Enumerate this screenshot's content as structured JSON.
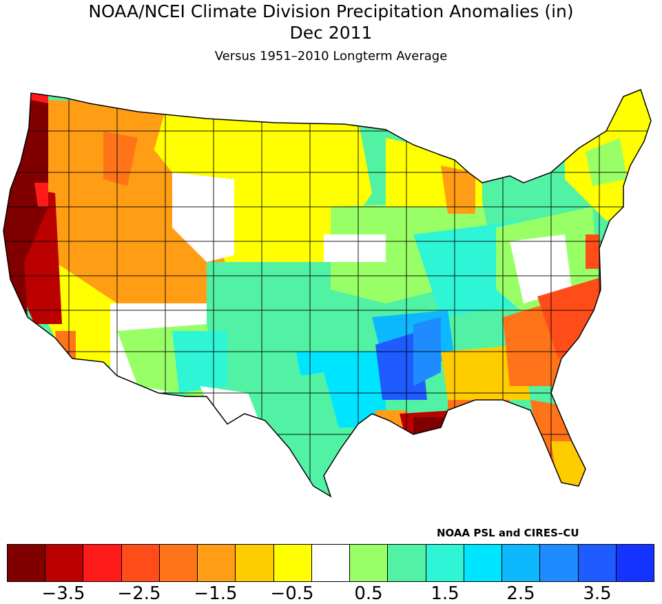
{
  "title": {
    "line1": "NOAA/NCEI Climate Division Precipitation Anomalies (in)",
    "line2": "Dec 2011",
    "line3": "Versus 1951–2010 Longterm Average"
  },
  "credit": "NOAA PSL and CIRES–CU",
  "legend": {
    "unit": "in",
    "colors": [
      "#800000",
      "#bb0000",
      "#ff1a1a",
      "#ff4d1a",
      "#ff7419",
      "#ff9e14",
      "#ffcc00",
      "#ffff00",
      "#ffffff",
      "#99ff66",
      "#52f2a4",
      "#2ef5d6",
      "#00e5ff",
      "#0db8ff",
      "#1e8cff",
      "#1f5cff",
      "#1433ff"
    ],
    "tick_labels": [
      "−3.5",
      "−2.5",
      "−1.5",
      "−0.5",
      "0.5",
      "1.5",
      "2.5",
      "3.5"
    ]
  },
  "regions": [
    {
      "name": "pacific-northwest-coast",
      "color": "#800000"
    },
    {
      "name": "oregon-interior",
      "color": "#bb0000"
    },
    {
      "name": "northern-rockies",
      "color": "#ff9e14"
    },
    {
      "name": "northern-plains",
      "color": "#ffff00"
    },
    {
      "name": "central-plains",
      "color": "#52f2a4"
    },
    {
      "name": "southern-plains",
      "color": "#52f2a4"
    },
    {
      "name": "south-central",
      "color": "#2ef5d6"
    },
    {
      "name": "mississippi-valley",
      "color": "#1f5cff"
    },
    {
      "name": "louisiana-coast",
      "color": "#800000"
    },
    {
      "name": "southeast",
      "color": "#ff7419"
    },
    {
      "name": "florida",
      "color": "#ffcc00"
    },
    {
      "name": "northeast",
      "color": "#ffff00"
    },
    {
      "name": "ohio-valley",
      "color": "#99ff66"
    },
    {
      "name": "southwest",
      "color": "#52f2a4"
    },
    {
      "name": "great-basin",
      "color": "#ff9e14"
    },
    {
      "name": "california-south",
      "color": "#ffff00"
    }
  ]
}
